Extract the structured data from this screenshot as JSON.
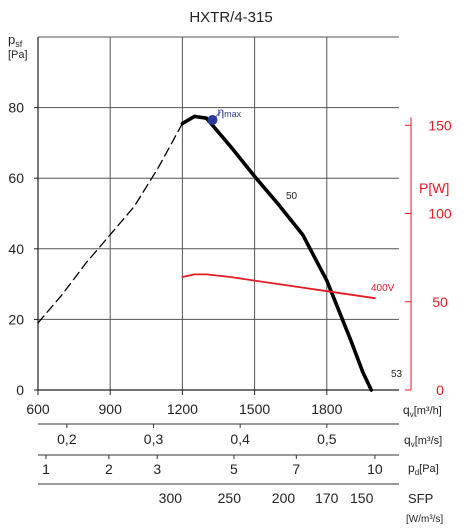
{
  "chart_data": {
    "type": "line",
    "title": "HXTR/4-315",
    "y_left": {
      "label_main": "p",
      "label_sub": "sf",
      "unit": "[Pa]",
      "ticks": [
        0,
        20,
        40,
        60,
        80
      ],
      "range": [
        0,
        100
      ]
    },
    "y_right": {
      "label": "P[W]",
      "ticks": [
        0,
        50,
        100,
        150
      ],
      "range": [
        0,
        200
      ]
    },
    "x": {
      "label_main": "q",
      "label_sub": "v",
      "unit": "[m³/h]",
      "ticks": [
        600,
        900,
        1200,
        1500,
        1800
      ],
      "range": [
        600,
        2100
      ]
    },
    "x_secondary": [
      {
        "label_main": "q",
        "label_sub": "v",
        "unit": "[m³/s]",
        "ticks": [
          {
            "value": 0.2,
            "text": "0,2"
          },
          {
            "value": 0.3,
            "text": "0,3"
          },
          {
            "value": 0.4,
            "text": "0,4"
          },
          {
            "value": 0.5,
            "text": "0,5"
          }
        ]
      },
      {
        "label_main": "p",
        "label_sub": "d",
        "unit": "[Pa]",
        "ticks": [
          {
            "value": 1,
            "text": "1"
          },
          {
            "value": 2,
            "text": "2"
          },
          {
            "value": 3,
            "text": "3"
          },
          {
            "value": 5,
            "text": "5"
          },
          {
            "value": 7,
            "text": "7"
          },
          {
            "value": 10,
            "text": "10"
          }
        ]
      },
      {
        "label_main": "SFP",
        "unit": "[W/m³/s]",
        "ticks": [
          {
            "value": 300,
            "text": "300"
          },
          {
            "value": 250,
            "text": "250"
          },
          {
            "value": 200,
            "text": "200"
          },
          {
            "value": 170,
            "text": "170"
          },
          {
            "value": 150,
            "text": "150"
          }
        ]
      }
    ],
    "series": [
      {
        "name": "50",
        "axis": "left",
        "color": "#000000",
        "style": "solid-thick",
        "points": [
          [
            1200,
            75.5
          ],
          [
            1250,
            77.5
          ],
          [
            1300,
            77
          ],
          [
            1400,
            69
          ],
          [
            1500,
            60.5
          ],
          [
            1600,
            52.5
          ],
          [
            1700,
            44
          ],
          [
            1800,
            31
          ],
          [
            1900,
            14
          ],
          [
            1950,
            5
          ],
          [
            1985,
            0
          ]
        ]
      },
      {
        "name": "dashed-extension",
        "axis": "left",
        "color": "#000000",
        "style": "dashed",
        "points": [
          [
            600,
            19
          ],
          [
            700,
            27
          ],
          [
            800,
            36
          ],
          [
            900,
            44
          ],
          [
            1000,
            52
          ],
          [
            1100,
            63
          ],
          [
            1200,
            75.5
          ]
        ]
      },
      {
        "name": "400V",
        "axis": "right",
        "color": "#e51b24",
        "style": "solid",
        "points": [
          [
            1200,
            64
          ],
          [
            1250,
            65.5
          ],
          [
            1300,
            65.5
          ],
          [
            1400,
            64
          ],
          [
            1500,
            62
          ],
          [
            1600,
            60
          ],
          [
            1700,
            58
          ],
          [
            1800,
            56
          ],
          [
            1900,
            54
          ],
          [
            2000,
            52
          ]
        ]
      }
    ],
    "annotations": {
      "eta_max": {
        "label": "η",
        "sub": "max",
        "point": [
          1325,
          76.5
        ],
        "color": "#2b3a9a"
      },
      "curve_label_50": "50",
      "curve_label_53": "53",
      "power_label": "400V"
    },
    "grid": true
  }
}
